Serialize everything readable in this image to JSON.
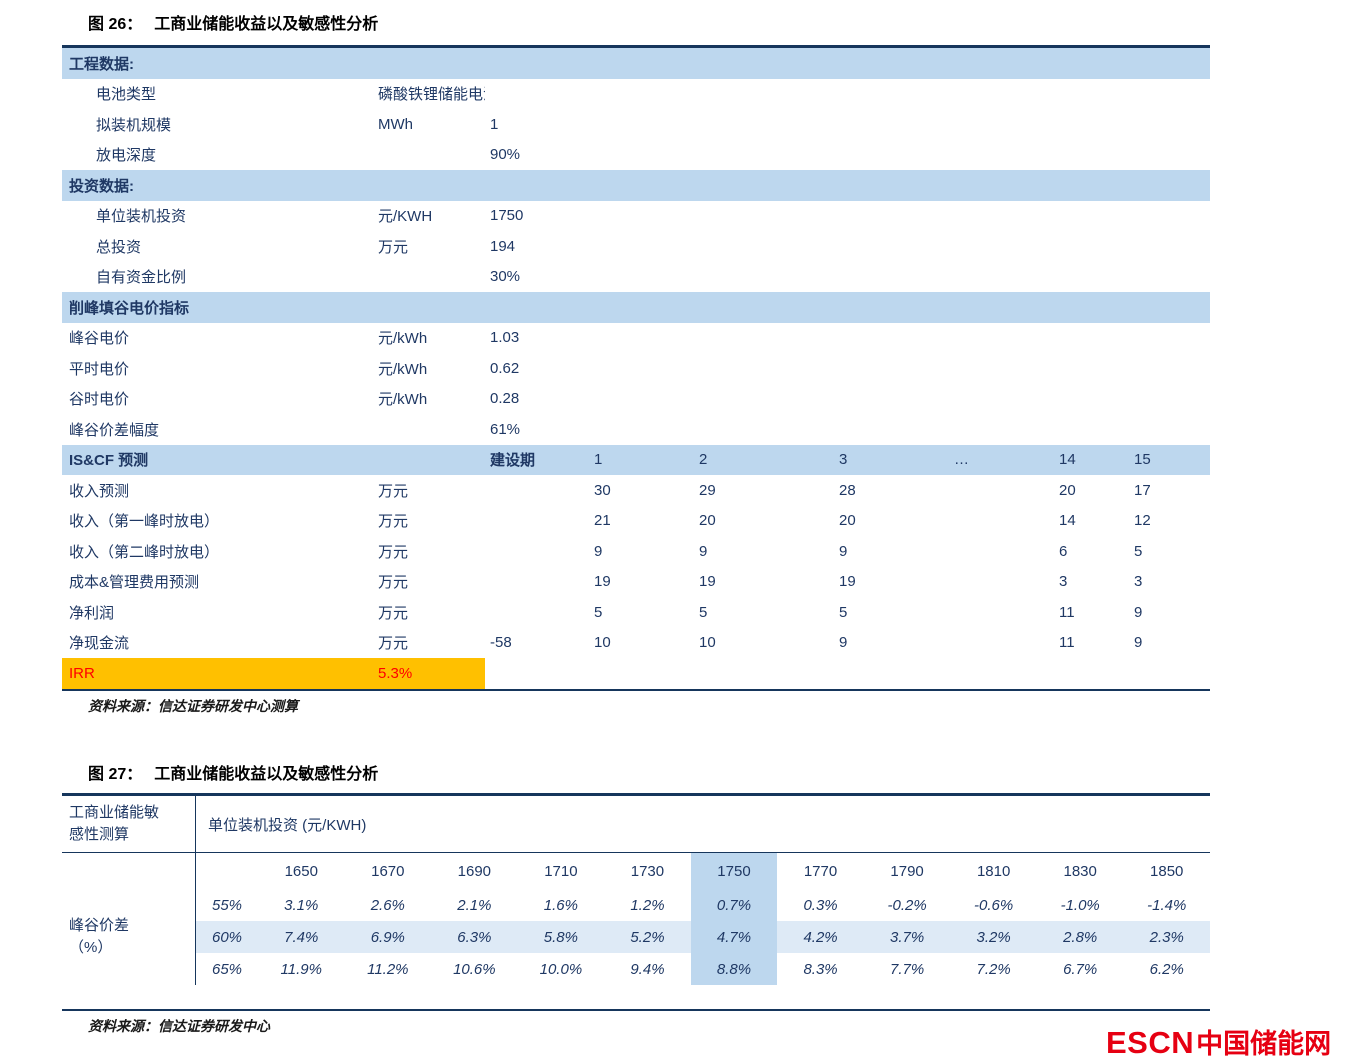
{
  "figure26": {
    "title_prefix": "图 26：",
    "title": "工商业储能收益以及敏感性分析",
    "source": "资料来源：信达证券研发中心测算",
    "rows": [
      {
        "type": "section",
        "label": "工程数据:"
      },
      {
        "type": "data",
        "indent": true,
        "label": "电池类型",
        "unit": "磷酸铁锂储能电池",
        "value": ""
      },
      {
        "type": "data",
        "indent": true,
        "label": "拟装机规模",
        "unit": "MWh",
        "value": "1"
      },
      {
        "type": "data",
        "indent": true,
        "label": "放电深度",
        "unit": "",
        "value": "90%"
      },
      {
        "type": "section",
        "label": "投资数据:"
      },
      {
        "type": "data",
        "indent": true,
        "label": "单位装机投资",
        "unit": "元/KWH",
        "value": "1750"
      },
      {
        "type": "data",
        "indent": true,
        "label": "总投资",
        "unit": "万元",
        "value": "194"
      },
      {
        "type": "data",
        "indent": true,
        "label": "自有资金比例",
        "unit": "",
        "value": "30%"
      },
      {
        "type": "section",
        "label": "削峰填谷电价指标"
      },
      {
        "type": "data",
        "label": "峰谷电价",
        "unit": "元/kWh",
        "value": "1.03"
      },
      {
        "type": "data",
        "label": "平时电价",
        "unit": "元/kWh",
        "value": "0.62"
      },
      {
        "type": "data",
        "label": "谷时电价",
        "unit": "元/kWh",
        "value": "0.28"
      },
      {
        "type": "data",
        "label": "峰谷价差幅度",
        "unit": "",
        "value": "61%"
      },
      {
        "type": "header",
        "label": "IS&CF 预测",
        "unit": "",
        "value": "建设期",
        "cols": [
          "1",
          "2",
          "3",
          "…",
          "14",
          "15"
        ]
      },
      {
        "type": "data",
        "label": "收入预测",
        "unit": "万元",
        "value": "",
        "cols": [
          "30",
          "29",
          "28",
          "",
          "20",
          "17"
        ]
      },
      {
        "type": "data",
        "label": "收入（第一峰时放电）",
        "unit": "万元",
        "value": "",
        "cols": [
          "21",
          "20",
          "20",
          "",
          "14",
          "12"
        ]
      },
      {
        "type": "data",
        "label": "收入（第二峰时放电）",
        "unit": "万元",
        "value": "",
        "cols": [
          "9",
          "9",
          "9",
          "",
          "6",
          "5"
        ]
      },
      {
        "type": "data",
        "label": "成本&管理费用预测",
        "unit": "万元",
        "value": "",
        "cols": [
          "19",
          "19",
          "19",
          "",
          "3",
          "3"
        ]
      },
      {
        "type": "data",
        "label": "净利润",
        "unit": "万元",
        "value": "",
        "cols": [
          "5",
          "5",
          "5",
          "",
          "11",
          "9"
        ]
      },
      {
        "type": "data",
        "label": "净现金流",
        "unit": "万元",
        "value": "-58",
        "cols": [
          "10",
          "10",
          "9",
          "",
          "11",
          "9"
        ]
      },
      {
        "type": "irr",
        "label": "IRR",
        "unit": "5.3%"
      }
    ]
  },
  "figure27": {
    "title_prefix": "图 27：",
    "title": "工商业储能收益以及敏感性分析",
    "source": "资料来源：信达证券研发中心",
    "corner_label": "工商业储能敏感性测算",
    "header": "单位装机投资 (元/KWH)",
    "row_group_label": "峰谷价差（%）",
    "col_headers": [
      "1650",
      "1670",
      "1690",
      "1710",
      "1730",
      "1750",
      "1770",
      "1790",
      "1810",
      "1830",
      "1850"
    ],
    "highlight_col": 5,
    "rows": [
      {
        "label": "55%",
        "highlight": false,
        "values": [
          "3.1%",
          "2.6%",
          "2.1%",
          "1.6%",
          "1.2%",
          "0.7%",
          "0.3%",
          "-0.2%",
          "-0.6%",
          "-1.0%",
          "-1.4%"
        ]
      },
      {
        "label": "60%",
        "highlight": true,
        "values": [
          "7.4%",
          "6.9%",
          "6.3%",
          "5.8%",
          "5.2%",
          "4.7%",
          "4.2%",
          "3.7%",
          "3.2%",
          "2.8%",
          "2.3%"
        ]
      },
      {
        "label": "65%",
        "highlight": false,
        "values": [
          "11.9%",
          "11.2%",
          "10.6%",
          "10.0%",
          "9.4%",
          "8.8%",
          "8.3%",
          "7.7%",
          "7.2%",
          "6.7%",
          "6.2%"
        ]
      }
    ]
  },
  "logo": {
    "escn": "ESCN",
    "site": "中国储能网"
  },
  "colors": {
    "section_bg": "#BDD7EE",
    "row_highlight": "#DEEAF6",
    "text_navy": "#1F3864",
    "irr_bg": "#FFC000",
    "irr_text": "#FF0000",
    "border": "#16365C",
    "logo_red": "#E60012"
  }
}
